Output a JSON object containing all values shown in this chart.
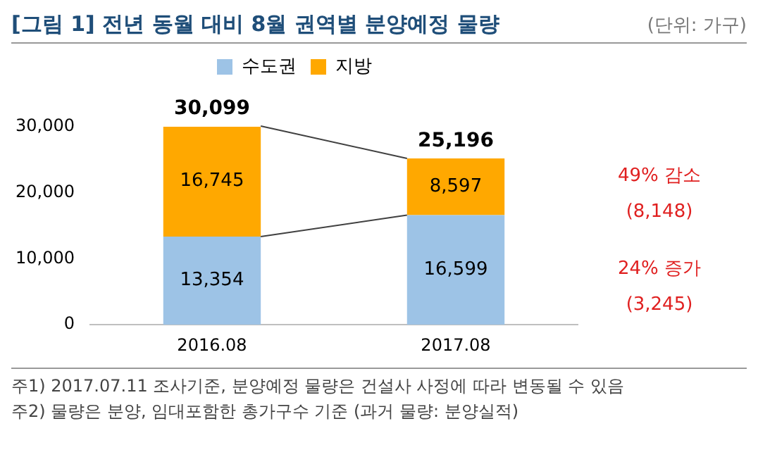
{
  "chart_data": {
    "type": "bar",
    "title": "[그림 1] 전년 동월 대비 8월 권역별 분양예정 물량",
    "stacked": true,
    "categories": [
      "2016.08",
      "2017.08"
    ],
    "series": [
      {
        "name": "수도권",
        "color": "#9dc3e6",
        "values": [
          13354,
          16599
        ],
        "value_labels": [
          "13,354",
          "16,599"
        ]
      },
      {
        "name": "지방",
        "color": "#ffa800",
        "values": [
          16745,
          8597
        ],
        "value_labels": [
          "16,745",
          "8,597"
        ]
      }
    ],
    "ylim": [
      0,
      30000
    ],
    "yticks": [
      0,
      {
        "value": 10000,
        "label": "10,000"
      },
      {
        "value": 20000,
        "label": "20,000"
      },
      {
        "value": 30000,
        "label": "30,000"
      }
    ],
    "grid": false,
    "legend": "top",
    "totals": [
      "30,099",
      "25,196"
    ],
    "annotations": [
      "(단위: 가구)",
      "49% 감소",
      "(8,148)",
      "24% 증가",
      "(3,245)",
      "주1) 2017.07.11 조사기준, 분양예정 물량은 건설사 사정에 따라 변동될 수 있음",
      "주2) 물량은 분양, 임대포함한 총가구수 기준 (과거 물량: 분양실적)"
    ]
  }
}
